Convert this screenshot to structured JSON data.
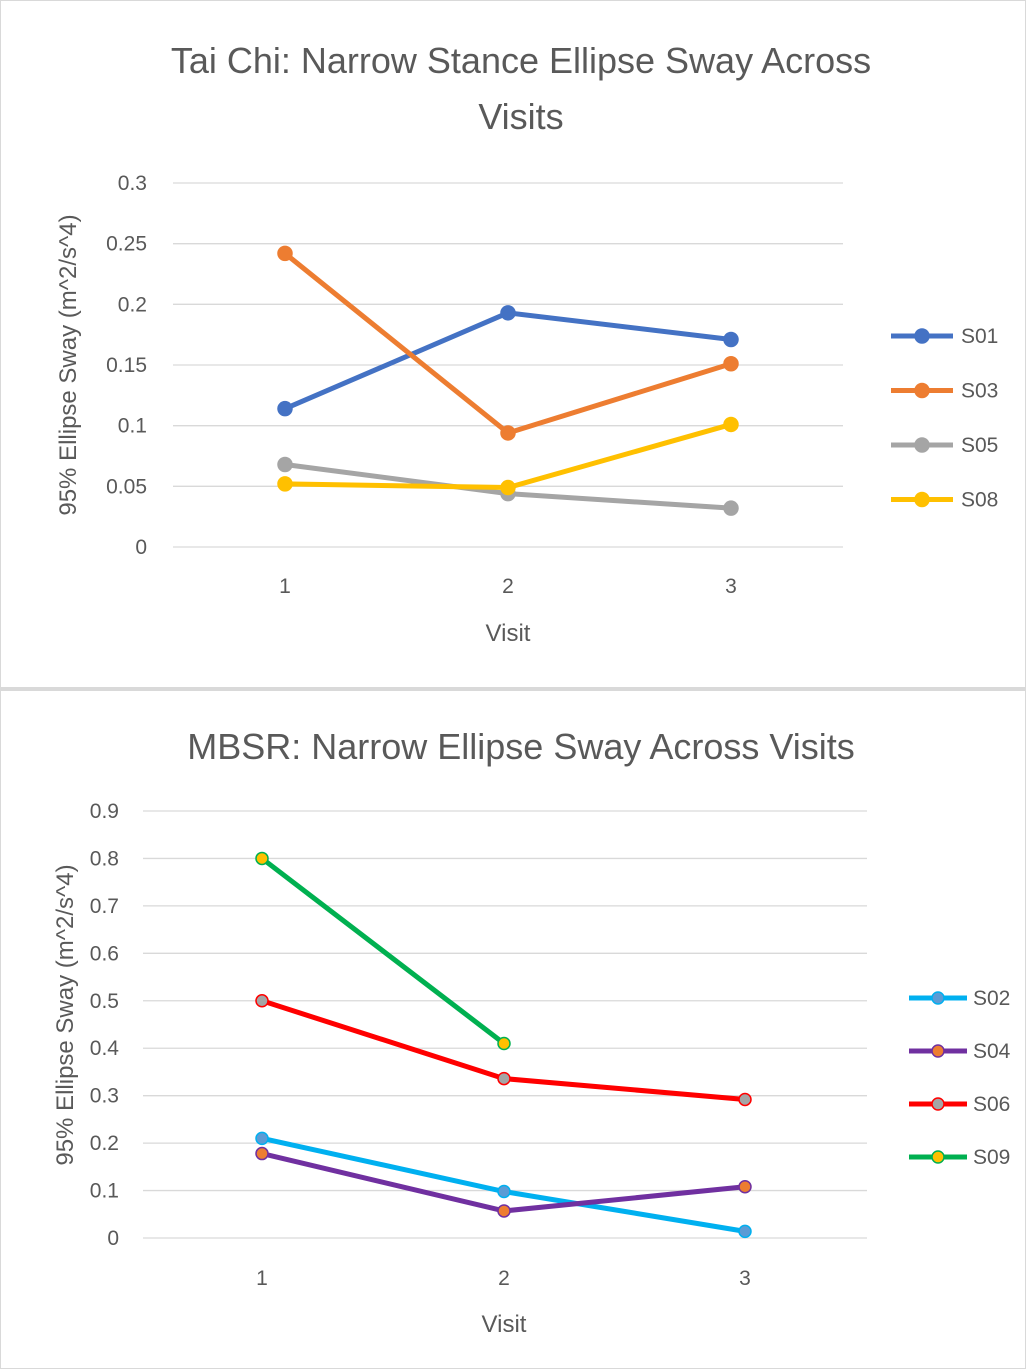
{
  "chart_data": [
    {
      "type": "line",
      "title": "Tai Chi: Narrow Stance Ellipse Sway Across Visits",
      "title_lines": [
        "Tai Chi: Narrow Stance Ellipse Sway Across",
        "Visits"
      ],
      "xlabel": "Visit",
      "ylabel": "95% Ellipse Sway (m^2/s^4)",
      "categories": [
        "1",
        "2",
        "3"
      ],
      "ylim": [
        0,
        0.3
      ],
      "yticks": [
        "0",
        "0.05",
        "0.1",
        "0.15",
        "0.2",
        "0.25",
        "0.3"
      ],
      "ytick_values": [
        0,
        0.05,
        0.1,
        0.15,
        0.2,
        0.25,
        0.3
      ],
      "grid": true,
      "legend_position": "right",
      "series": [
        {
          "name": "S01",
          "values": [
            0.114,
            0.193,
            0.171
          ],
          "color": "#4472C4",
          "marker_fill": "#4472C4"
        },
        {
          "name": "S03",
          "values": [
            0.242,
            0.094,
            0.151
          ],
          "color": "#ED7D31",
          "marker_fill": "#ED7D31"
        },
        {
          "name": "S05",
          "values": [
            0.068,
            0.044,
            0.032
          ],
          "color": "#A5A5A5",
          "marker_fill": "#A5A5A5"
        },
        {
          "name": "S08",
          "values": [
            0.052,
            0.049,
            0.101
          ],
          "color": "#FFC000",
          "marker_fill": "#FFC000"
        }
      ]
    },
    {
      "type": "line",
      "title": "MBSR: Narrow Ellipse Sway Across Visits",
      "title_lines": [
        "MBSR: Narrow Ellipse Sway Across Visits"
      ],
      "xlabel": "Visit",
      "ylabel": "95% Ellipse Sway (m^2/s^4)",
      "categories": [
        "1",
        "2",
        "3"
      ],
      "ylim": [
        0,
        0.9
      ],
      "yticks": [
        "0",
        "0.1",
        "0.2",
        "0.3",
        "0.4",
        "0.5",
        "0.6",
        "0.7",
        "0.8",
        "0.9"
      ],
      "ytick_values": [
        0,
        0.1,
        0.2,
        0.3,
        0.4,
        0.5,
        0.6,
        0.7,
        0.8,
        0.9
      ],
      "grid": true,
      "legend_position": "right",
      "series": [
        {
          "name": "S02",
          "values": [
            0.21,
            0.098,
            0.014
          ],
          "color": "#00B0F0",
          "marker_fill": "#5B9BD5"
        },
        {
          "name": "S04",
          "values": [
            0.178,
            0.057,
            0.108
          ],
          "color": "#7030A0",
          "marker_fill": "#ED7D31"
        },
        {
          "name": "S06",
          "values": [
            0.5,
            0.336,
            0.292
          ],
          "color": "#FF0000",
          "marker_fill": "#A5A5A5"
        },
        {
          "name": "S09",
          "values": [
            0.8,
            0.41,
            null
          ],
          "color": "#00B050",
          "marker_fill": "#FFC000"
        }
      ]
    }
  ]
}
